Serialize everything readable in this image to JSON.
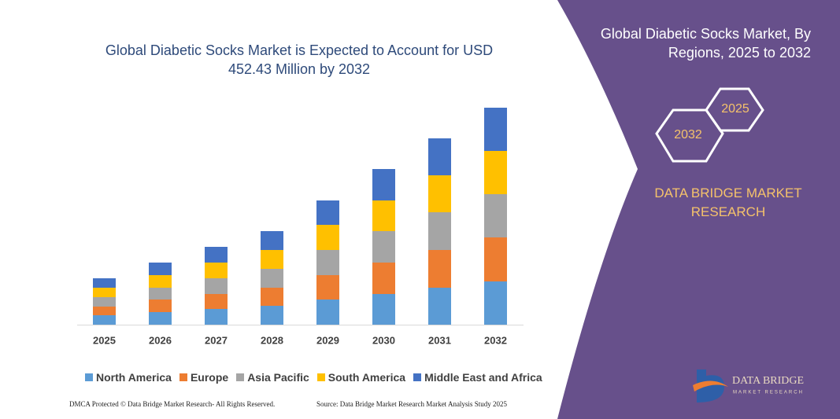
{
  "chart_data": {
    "type": "stacked-bar",
    "title": "Global Diabetic Socks Market is Expected to Account for USD 452.43 Million by 2032",
    "categories": [
      "2025",
      "2026",
      "2027",
      "2028",
      "2029",
      "2030",
      "2031",
      "2032"
    ],
    "series": [
      {
        "name": "North America",
        "color": "#5b9bd5",
        "values": [
          12,
          16,
          20,
          24,
          32,
          39,
          47,
          55
        ]
      },
      {
        "name": "Europe",
        "color": "#ed7d31",
        "values": [
          11,
          16,
          19,
          23,
          31,
          40,
          48,
          56
        ]
      },
      {
        "name": "Asia Pacific",
        "color": "#a5a5a5",
        "values": [
          12,
          15,
          20,
          24,
          32,
          40,
          48,
          55
        ]
      },
      {
        "name": "South America",
        "color": "#ffc000",
        "values": [
          12,
          16,
          20,
          24,
          32,
          39,
          47,
          55
        ]
      },
      {
        "name": "Middle East and Africa",
        "color": "#4472c4",
        "values": [
          12,
          16,
          20,
          24,
          31,
          40,
          47,
          55
        ]
      }
    ]
  },
  "side_panel": {
    "title": "Global Diabetic Socks Market, By Regions, 2025 to 2032",
    "hex_start": "2025",
    "hex_end": "2032",
    "brand": "DATA BRIDGE MARKET RESEARCH",
    "logo_name": "DATA BRIDGE",
    "logo_sub": "MARKET RESEARCH"
  },
  "footer": {
    "left": "DMCA Protected © Data Bridge Market Research- All Rights Reserved.",
    "right": "Source: Data Bridge Market Research Market Analysis Study 2025"
  }
}
